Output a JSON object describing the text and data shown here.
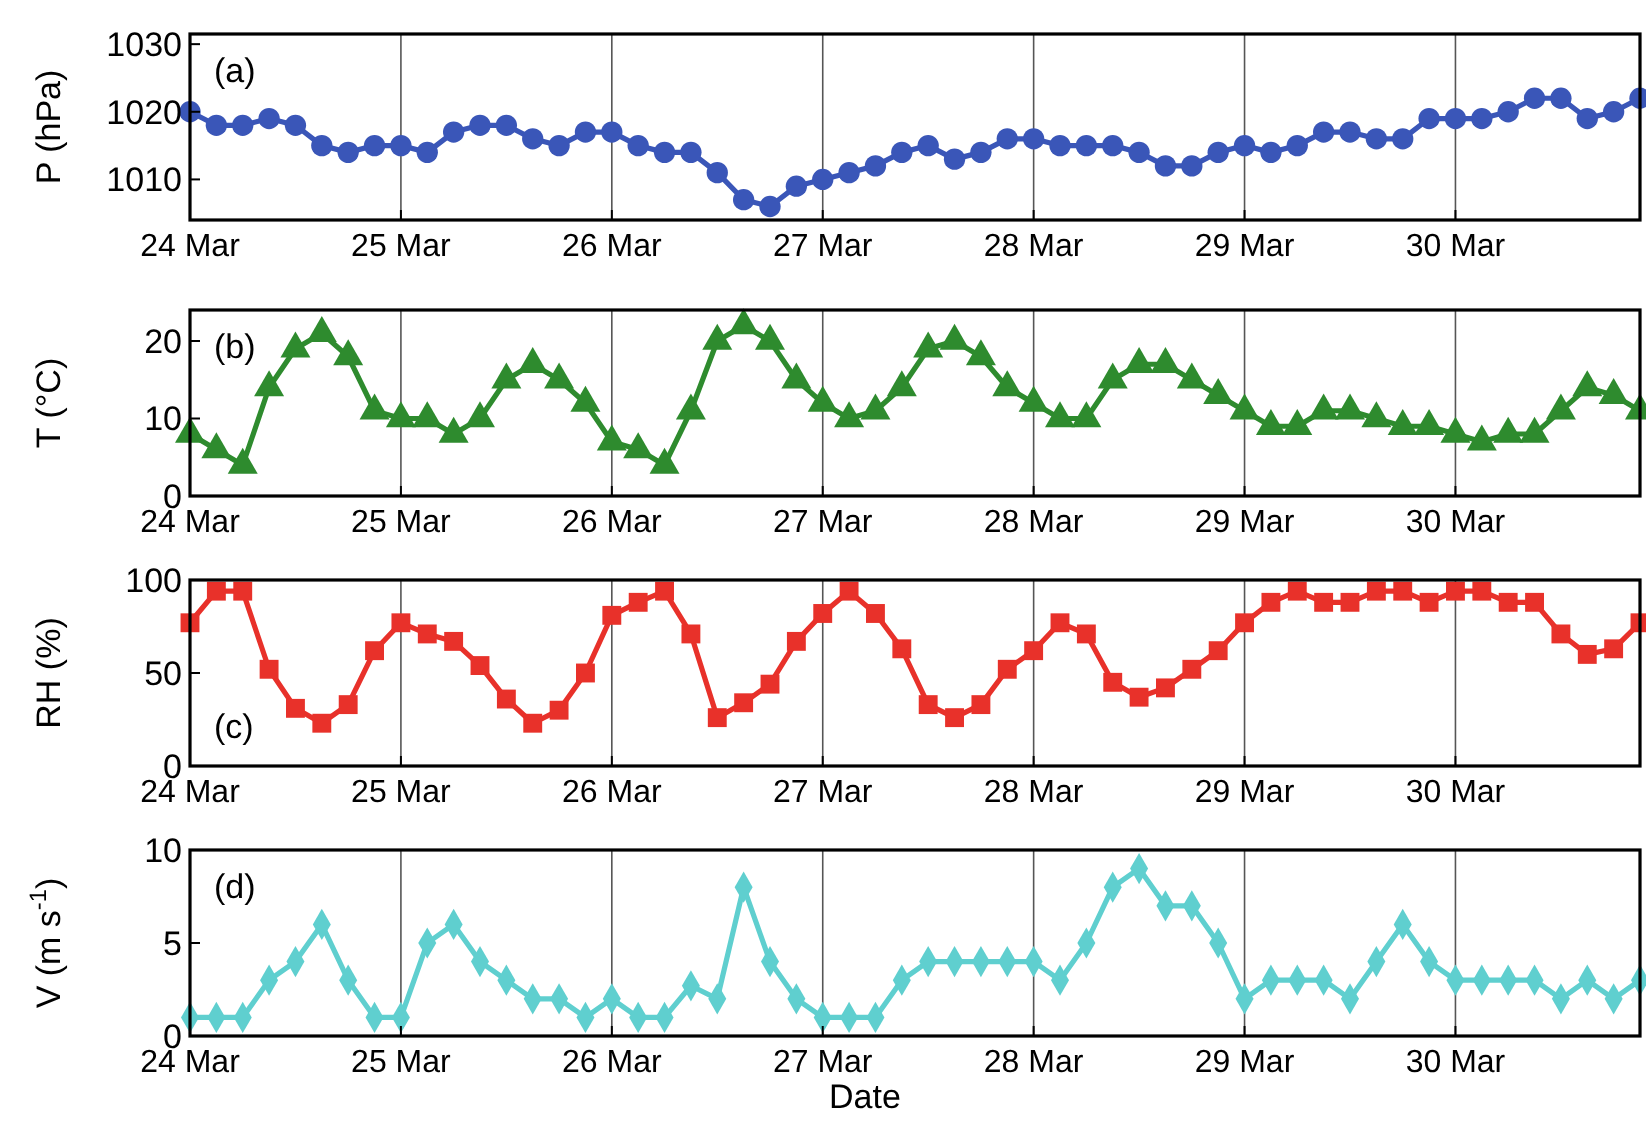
{
  "chart_data": [
    {
      "type": "line",
      "ylabel": "P (hPa)",
      "annotations": [
        "(a)"
      ],
      "marker": "circle",
      "grid": "x",
      "x": [
        "--03-24T00:00",
        "--03-24T03:00",
        "--03-24T06:00",
        "--03-24T09:00",
        "--03-24T12:00",
        "--03-24T15:00",
        "--03-24T18:00",
        "--03-24T21:00",
        "--03-25T00:00",
        "--03-25T03:00",
        "--03-25T06:00",
        "--03-25T09:00",
        "--03-25T12:00",
        "--03-25T15:00",
        "--03-25T18:00",
        "--03-25T21:00",
        "--03-26T00:00",
        "--03-26T03:00",
        "--03-26T06:00",
        "--03-26T09:00",
        "--03-26T12:00",
        "--03-26T15:00",
        "--03-26T18:00",
        "--03-26T21:00",
        "--03-27T00:00",
        "--03-27T03:00",
        "--03-27T06:00",
        "--03-27T09:00",
        "--03-27T12:00",
        "--03-27T15:00",
        "--03-27T18:00",
        "--03-27T21:00",
        "--03-28T00:00",
        "--03-28T03:00",
        "--03-28T06:00",
        "--03-28T09:00",
        "--03-28T12:00",
        "--03-28T15:00",
        "--03-28T18:00",
        "--03-28T21:00",
        "--03-29T00:00",
        "--03-29T03:00",
        "--03-29T06:00",
        "--03-29T09:00",
        "--03-29T12:00",
        "--03-29T15:00",
        "--03-29T18:00",
        "--03-29T21:00",
        "--03-30T00:00",
        "--03-30T03:00",
        "--03-30T06:00",
        "--03-30T09:00",
        "--03-30T12:00",
        "--03-30T15:00",
        "--03-30T18:00",
        "--03-30T21:00"
      ],
      "xlim": [
        "--03-24T00:00",
        "--03-30T21:00"
      ],
      "xticks": [
        {
          "value": "--03-24",
          "label": "24 Mar"
        },
        {
          "value": "--03-25",
          "label": "25 Mar"
        },
        {
          "value": "--03-26",
          "label": "26 Mar"
        },
        {
          "value": "--03-27",
          "label": "27 Mar"
        },
        {
          "value": "--03-28",
          "label": "28 Mar"
        },
        {
          "value": "--03-29",
          "label": "29 Mar"
        },
        {
          "value": "--03-30",
          "label": "30 Mar"
        }
      ],
      "ylim": [
        1004,
        1031.5
      ],
      "yticks": [
        1010,
        1020,
        1030
      ],
      "series": [
        {
          "color": "#3a56b8",
          "values": [
            1020,
            1018,
            1018,
            1019,
            1018,
            1015,
            1014,
            1015,
            1015,
            1014,
            1017,
            1018,
            1018,
            1016,
            1015,
            1017,
            1017,
            1015,
            1014,
            1014,
            1011,
            1007,
            1006,
            1009,
            1010,
            1011,
            1012,
            1014,
            1015,
            1013,
            1014,
            1016,
            1016,
            1015,
            1015,
            1015,
            1014,
            1012,
            1012,
            1014,
            1015,
            1014,
            1015,
            1017,
            1017,
            1016,
            1016,
            1019,
            1019,
            1019,
            1020,
            1022,
            1022,
            1019,
            1020,
            1022
          ]
        }
      ]
    },
    {
      "type": "line",
      "ylabel": "T (°C)",
      "annotations": [
        "(b)"
      ],
      "marker": "triangle",
      "grid": "x",
      "x": [
        "--03-24T00:00",
        "--03-24T03:00",
        "--03-24T06:00",
        "--03-24T09:00",
        "--03-24T12:00",
        "--03-24T15:00",
        "--03-24T18:00",
        "--03-24T21:00",
        "--03-25T00:00",
        "--03-25T03:00",
        "--03-25T06:00",
        "--03-25T09:00",
        "--03-25T12:00",
        "--03-25T15:00",
        "--03-25T18:00",
        "--03-25T21:00",
        "--03-26T00:00",
        "--03-26T03:00",
        "--03-26T06:00",
        "--03-26T09:00",
        "--03-26T12:00",
        "--03-26T15:00",
        "--03-26T18:00",
        "--03-26T21:00",
        "--03-27T00:00",
        "--03-27T03:00",
        "--03-27T06:00",
        "--03-27T09:00",
        "--03-27T12:00",
        "--03-27T15:00",
        "--03-27T18:00",
        "--03-27T21:00",
        "--03-28T00:00",
        "--03-28T03:00",
        "--03-28T06:00",
        "--03-28T09:00",
        "--03-28T12:00",
        "--03-28T15:00",
        "--03-28T18:00",
        "--03-28T21:00",
        "--03-29T00:00",
        "--03-29T03:00",
        "--03-29T06:00",
        "--03-29T09:00",
        "--03-29T12:00",
        "--03-29T15:00",
        "--03-29T18:00",
        "--03-29T21:00",
        "--03-30T00:00",
        "--03-30T03:00",
        "--03-30T06:00",
        "--03-30T09:00",
        "--03-30T12:00",
        "--03-30T15:00",
        "--03-30T18:00",
        "--03-30T21:00"
      ],
      "xlim": [
        "--03-24T00:00",
        "--03-30T21:00"
      ],
      "xticks": [
        {
          "value": "--03-24",
          "label": "24 Mar"
        },
        {
          "value": "--03-25",
          "label": "25 Mar"
        },
        {
          "value": "--03-26",
          "label": "26 Mar"
        },
        {
          "value": "--03-27",
          "label": "27 Mar"
        },
        {
          "value": "--03-28",
          "label": "28 Mar"
        },
        {
          "value": "--03-29",
          "label": "29 Mar"
        },
        {
          "value": "--03-30",
          "label": "30 Mar"
        }
      ],
      "ylim": [
        0,
        24
      ],
      "yticks": [
        0,
        10,
        20
      ],
      "series": [
        {
          "color": "#2e8b2e",
          "values": [
            8,
            6,
            4,
            14,
            19,
            21,
            18,
            11,
            10,
            10,
            8,
            10,
            15,
            17,
            15,
            12,
            7,
            6,
            4,
            11,
            20,
            22,
            20,
            15,
            12,
            10,
            11,
            14,
            19,
            20,
            18,
            14,
            12,
            10,
            10,
            15,
            17,
            17,
            15,
            13,
            11,
            9,
            9,
            11,
            11,
            10,
            9,
            9,
            8,
            7,
            8,
            8,
            11,
            14,
            13,
            11
          ]
        }
      ]
    },
    {
      "type": "line",
      "ylabel": "RH (%)",
      "annotations": [
        "(c)"
      ],
      "marker": "square",
      "grid": "x",
      "x": [
        "--03-24T00:00",
        "--03-24T03:00",
        "--03-24T06:00",
        "--03-24T09:00",
        "--03-24T12:00",
        "--03-24T15:00",
        "--03-24T18:00",
        "--03-24T21:00",
        "--03-25T00:00",
        "--03-25T03:00",
        "--03-25T06:00",
        "--03-25T09:00",
        "--03-25T12:00",
        "--03-25T15:00",
        "--03-25T18:00",
        "--03-25T21:00",
        "--03-26T00:00",
        "--03-26T03:00",
        "--03-26T06:00",
        "--03-26T09:00",
        "--03-26T12:00",
        "--03-26T15:00",
        "--03-26T18:00",
        "--03-26T21:00",
        "--03-27T00:00",
        "--03-27T03:00",
        "--03-27T06:00",
        "--03-27T09:00",
        "--03-27T12:00",
        "--03-27T15:00",
        "--03-27T18:00",
        "--03-27T21:00",
        "--03-28T00:00",
        "--03-28T03:00",
        "--03-28T06:00",
        "--03-28T09:00",
        "--03-28T12:00",
        "--03-28T15:00",
        "--03-28T18:00",
        "--03-28T21:00",
        "--03-29T00:00",
        "--03-29T03:00",
        "--03-29T06:00",
        "--03-29T09:00",
        "--03-29T12:00",
        "--03-29T15:00",
        "--03-29T18:00",
        "--03-29T21:00",
        "--03-30T00:00",
        "--03-30T03:00",
        "--03-30T06:00",
        "--03-30T09:00",
        "--03-30T12:00",
        "--03-30T15:00",
        "--03-30T18:00",
        "--03-30T21:00"
      ],
      "xlim": [
        "--03-24T00:00",
        "--03-30T21:00"
      ],
      "xticks": [
        {
          "value": "--03-24",
          "label": "24 Mar"
        },
        {
          "value": "--03-25",
          "label": "25 Mar"
        },
        {
          "value": "--03-26",
          "label": "26 Mar"
        },
        {
          "value": "--03-27",
          "label": "27 Mar"
        },
        {
          "value": "--03-28",
          "label": "28 Mar"
        },
        {
          "value": "--03-29",
          "label": "29 Mar"
        },
        {
          "value": "--03-30",
          "label": "30 Mar"
        }
      ],
      "ylim": [
        0,
        100
      ],
      "yticks": [
        0,
        50,
        100
      ],
      "series": [
        {
          "color": "#e8312a",
          "values": [
            77,
            94,
            94,
            52,
            31,
            23,
            33,
            62,
            77,
            71,
            67,
            54,
            36,
            23,
            30,
            50,
            81,
            88,
            94,
            71,
            26,
            34,
            44,
            67,
            82,
            94,
            82,
            63,
            33,
            26,
            33,
            52,
            62,
            77,
            71,
            45,
            37,
            42,
            52,
            62,
            77,
            88,
            94,
            88,
            88,
            94,
            94,
            88,
            94,
            94,
            88,
            88,
            71,
            60,
            63,
            77
          ]
        }
      ]
    },
    {
      "type": "line",
      "ylabel": "V (m s$^{-1}$)",
      "xlabel": "Date",
      "annotations": [
        "(d)"
      ],
      "marker": "diamond",
      "grid": "x",
      "x": [
        "--03-24T00:00",
        "--03-24T03:00",
        "--03-24T06:00",
        "--03-24T09:00",
        "--03-24T12:00",
        "--03-24T15:00",
        "--03-24T18:00",
        "--03-24T21:00",
        "--03-25T00:00",
        "--03-25T03:00",
        "--03-25T06:00",
        "--03-25T09:00",
        "--03-25T12:00",
        "--03-25T15:00",
        "--03-25T18:00",
        "--03-25T21:00",
        "--03-26T00:00",
        "--03-26T03:00",
        "--03-26T06:00",
        "--03-26T09:00",
        "--03-26T12:00",
        "--03-26T15:00",
        "--03-26T18:00",
        "--03-26T21:00",
        "--03-27T00:00",
        "--03-27T03:00",
        "--03-27T06:00",
        "--03-27T09:00",
        "--03-27T12:00",
        "--03-27T15:00",
        "--03-27T18:00",
        "--03-27T21:00",
        "--03-28T00:00",
        "--03-28T03:00",
        "--03-28T06:00",
        "--03-28T09:00",
        "--03-28T12:00",
        "--03-28T15:00",
        "--03-28T18:00",
        "--03-28T21:00",
        "--03-29T00:00",
        "--03-29T03:00",
        "--03-29T06:00",
        "--03-29T09:00",
        "--03-29T12:00",
        "--03-29T15:00",
        "--03-29T18:00",
        "--03-29T21:00",
        "--03-30T00:00",
        "--03-30T03:00",
        "--03-30T06:00",
        "--03-30T09:00",
        "--03-30T12:00",
        "--03-30T15:00",
        "--03-30T18:00",
        "--03-30T21:00"
      ],
      "xlim": [
        "--03-24T00:00",
        "--03-30T21:00"
      ],
      "xticks": [
        {
          "value": "--03-24",
          "label": "24 Mar"
        },
        {
          "value": "--03-25",
          "label": "25 Mar"
        },
        {
          "value": "--03-26",
          "label": "26 Mar"
        },
        {
          "value": "--03-27",
          "label": "27 Mar"
        },
        {
          "value": "--03-28",
          "label": "28 Mar"
        },
        {
          "value": "--03-29",
          "label": "29 Mar"
        },
        {
          "value": "--03-30",
          "label": "30 Mar"
        }
      ],
      "ylim": [
        0,
        10
      ],
      "yticks": [
        0,
        5,
        10
      ],
      "series": [
        {
          "color": "#5fcfcf",
          "values": [
            1,
            1,
            1,
            3,
            4,
            6,
            3,
            1,
            1,
            5,
            6,
            4,
            3,
            2,
            2,
            1,
            2,
            1,
            1,
            2.7,
            2,
            8,
            4,
            2,
            1,
            1,
            1,
            3,
            4,
            4,
            4,
            4,
            4,
            3,
            5,
            8,
            9,
            7,
            7,
            5,
            2,
            3,
            3,
            3,
            2,
            4,
            6,
            4,
            3,
            3,
            3,
            3,
            2,
            3,
            2,
            3
          ]
        }
      ]
    }
  ]
}
